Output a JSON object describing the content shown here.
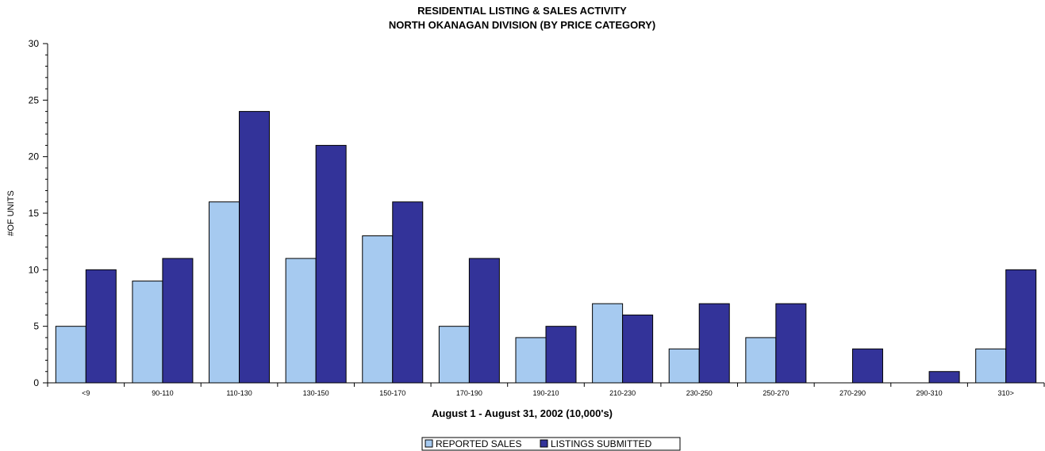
{
  "chart_data": {
    "type": "bar",
    "title": "RESIDENTIAL LISTING & SALES ACTIVITY",
    "subtitle": "NORTH OKANAGAN DIVISION (BY PRICE CATEGORY)",
    "xlabel": "August 1 - August 31, 2002 (10,000's)",
    "ylabel": "#OF UNITS",
    "ylim": [
      0,
      30
    ],
    "yticks": [
      0,
      5,
      10,
      15,
      20,
      25,
      30
    ],
    "categories": [
      "<9",
      "90-110",
      "110-130",
      "130-150",
      "150-170",
      "170-190",
      "190-210",
      "210-230",
      "230-250",
      "250-270",
      "270-290",
      "290-310",
      "310>"
    ],
    "series": [
      {
        "name": "REPORTED SALES",
        "color": "#a6caf0",
        "values": [
          5,
          9,
          16,
          11,
          13,
          5,
          4,
          7,
          3,
          4,
          0,
          0,
          3
        ]
      },
      {
        "name": "LISTINGS SUBMITTED",
        "color": "#333399",
        "values": [
          10,
          11,
          24,
          21,
          16,
          11,
          5,
          6,
          7,
          7,
          3,
          1,
          10
        ]
      }
    ],
    "grid": false,
    "legend_position": "bottom-center"
  }
}
